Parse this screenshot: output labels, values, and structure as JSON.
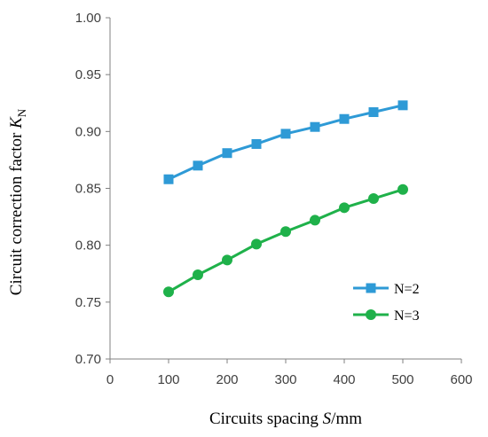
{
  "chart_data": {
    "type": "line",
    "xlabel": {
      "text": "Circuits spacing ",
      "var": "S",
      "unit": "/mm"
    },
    "ylabel": {
      "text": "Circuit correction factor ",
      "var": "K",
      "sub": "N"
    },
    "xlim": [
      0,
      600
    ],
    "ylim": [
      0.7,
      1.0
    ],
    "x_ticks": [
      "0",
      "100",
      "200",
      "300",
      "400",
      "500",
      "600"
    ],
    "y_ticks": [
      "0.70",
      "0.75",
      "0.80",
      "0.85",
      "0.90",
      "0.95",
      "1.00"
    ],
    "grid": false,
    "legend_position": "lower-right",
    "x": [
      100,
      150,
      200,
      250,
      300,
      350,
      400,
      450,
      500
    ],
    "series": [
      {
        "name": "N=2",
        "marker": "square",
        "color": "#2E9AD6",
        "values": [
          0.858,
          0.87,
          0.881,
          0.889,
          0.898,
          0.904,
          0.911,
          0.917,
          0.923
        ]
      },
      {
        "name": "N=3",
        "marker": "circle",
        "color": "#1FB14A",
        "values": [
          0.759,
          0.774,
          0.787,
          0.801,
          0.812,
          0.822,
          0.833,
          0.841,
          0.849
        ]
      }
    ]
  }
}
